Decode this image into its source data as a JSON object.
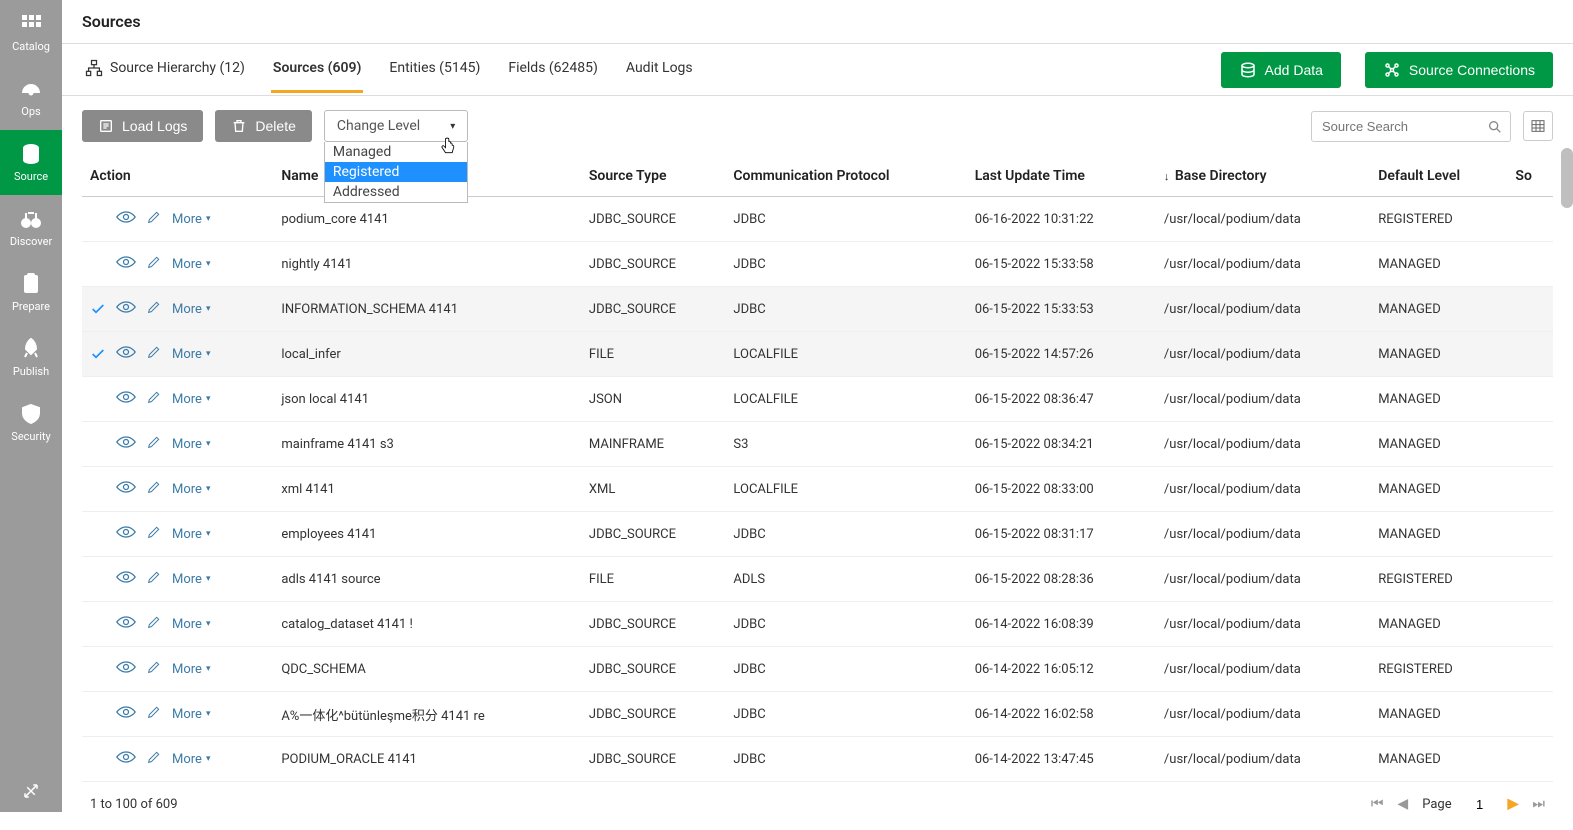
{
  "header": {
    "title": "Sources"
  },
  "sidebar": {
    "items": [
      {
        "label": "Catalog",
        "icon": "grid"
      },
      {
        "label": "Ops",
        "icon": "gauge"
      },
      {
        "label": "Source",
        "icon": "database",
        "active": true
      },
      {
        "label": "Discover",
        "icon": "binoculars"
      },
      {
        "label": "Prepare",
        "icon": "clipboard"
      },
      {
        "label": "Publish",
        "icon": "rocket"
      },
      {
        "label": "Security",
        "icon": "shield"
      }
    ]
  },
  "tabs": {
    "items": [
      {
        "label": "Source Hierarchy (12)",
        "icon": "hierarchy"
      },
      {
        "label": "Sources (609)",
        "active": true
      },
      {
        "label": "Entities (5145)"
      },
      {
        "label": "Fields (62485)"
      },
      {
        "label": "Audit Logs"
      }
    ]
  },
  "topButtons": {
    "addData": "Add Data",
    "sourceConnections": "Source Connections"
  },
  "toolbar": {
    "loadLogs": "Load Logs",
    "delete": "Delete",
    "changeLevel": "Change Level",
    "changeLevelOptions": [
      "Managed",
      "Registered",
      "Addressed"
    ],
    "highlightedOption": "Registered",
    "searchPlaceholder": "Source Search"
  },
  "table": {
    "columns": [
      "Action",
      "Name",
      "Source Type",
      "Communication Protocol",
      "Last Update Time",
      "Base Directory",
      "Default Level",
      "So"
    ],
    "sortColumn": "Base Directory",
    "sortDir": "down",
    "moreLabel": "More",
    "rows": [
      {
        "selected": false,
        "name": "podium_core 4141",
        "sourceType": "JDBC_SOURCE",
        "protocol": "JDBC",
        "lastUpdate": "06-16-2022 10:31:22",
        "baseDir": "/usr/local/podium/data",
        "level": "REGISTERED"
      },
      {
        "selected": false,
        "name": "nightly 4141",
        "sourceType": "JDBC_SOURCE",
        "protocol": "JDBC",
        "lastUpdate": "06-15-2022 15:33:58",
        "baseDir": "/usr/local/podium/data",
        "level": "MANAGED"
      },
      {
        "selected": true,
        "name": "INFORMATION_SCHEMA 4141",
        "sourceType": "JDBC_SOURCE",
        "protocol": "JDBC",
        "lastUpdate": "06-15-2022 15:33:53",
        "baseDir": "/usr/local/podium/data",
        "level": "MANAGED"
      },
      {
        "selected": true,
        "name": "local_infer",
        "sourceType": "FILE",
        "protocol": "LOCALFILE",
        "lastUpdate": "06-15-2022 14:57:26",
        "baseDir": "/usr/local/podium/data",
        "level": "MANAGED"
      },
      {
        "selected": false,
        "name": "json local 4141",
        "sourceType": "JSON",
        "protocol": "LOCALFILE",
        "lastUpdate": "06-15-2022 08:36:47",
        "baseDir": "/usr/local/podium/data",
        "level": "MANAGED"
      },
      {
        "selected": false,
        "name": "mainframe 4141 s3",
        "sourceType": "MAINFRAME",
        "protocol": "S3",
        "lastUpdate": "06-15-2022 08:34:21",
        "baseDir": "/usr/local/podium/data",
        "level": "MANAGED"
      },
      {
        "selected": false,
        "name": "xml 4141",
        "sourceType": "XML",
        "protocol": "LOCALFILE",
        "lastUpdate": "06-15-2022 08:33:00",
        "baseDir": "/usr/local/podium/data",
        "level": "MANAGED"
      },
      {
        "selected": false,
        "name": "employees 4141",
        "sourceType": "JDBC_SOURCE",
        "protocol": "JDBC",
        "lastUpdate": "06-15-2022 08:31:17",
        "baseDir": "/usr/local/podium/data",
        "level": "MANAGED"
      },
      {
        "selected": false,
        "name": "adls 4141 source",
        "sourceType": "FILE",
        "protocol": "ADLS",
        "lastUpdate": "06-15-2022 08:28:36",
        "baseDir": "/usr/local/podium/data",
        "level": "REGISTERED"
      },
      {
        "selected": false,
        "name": "catalog_dataset 4141 !",
        "sourceType": "JDBC_SOURCE",
        "protocol": "JDBC",
        "lastUpdate": "06-14-2022 16:08:39",
        "baseDir": "/usr/local/podium/data",
        "level": "MANAGED"
      },
      {
        "selected": false,
        "name": "QDC_SCHEMA",
        "sourceType": "JDBC_SOURCE",
        "protocol": "JDBC",
        "lastUpdate": "06-14-2022 16:05:12",
        "baseDir": "/usr/local/podium/data",
        "level": "REGISTERED"
      },
      {
        "selected": false,
        "name": "A%一体化^bütünleşme积分 4141 re",
        "sourceType": "JDBC_SOURCE",
        "protocol": "JDBC",
        "lastUpdate": "06-14-2022 16:02:58",
        "baseDir": "/usr/local/podium/data",
        "level": "MANAGED"
      },
      {
        "selected": false,
        "name": "PODIUM_ORACLE 4141",
        "sourceType": "JDBC_SOURCE",
        "protocol": "JDBC",
        "lastUpdate": "06-14-2022 13:47:45",
        "baseDir": "/usr/local/podium/data",
        "level": "MANAGED"
      }
    ]
  },
  "footer": {
    "countText": "1 to 100 of 609",
    "pageLabel": "Page",
    "pageValue": "1"
  },
  "colors": {
    "accent": "#009845",
    "link": "#3b7ba8",
    "highlight": "#1e90ff",
    "tabUnderline": "#f5a623",
    "sidebarBg": "#9b9b9b",
    "greyBtn": "#8a8a8a"
  }
}
